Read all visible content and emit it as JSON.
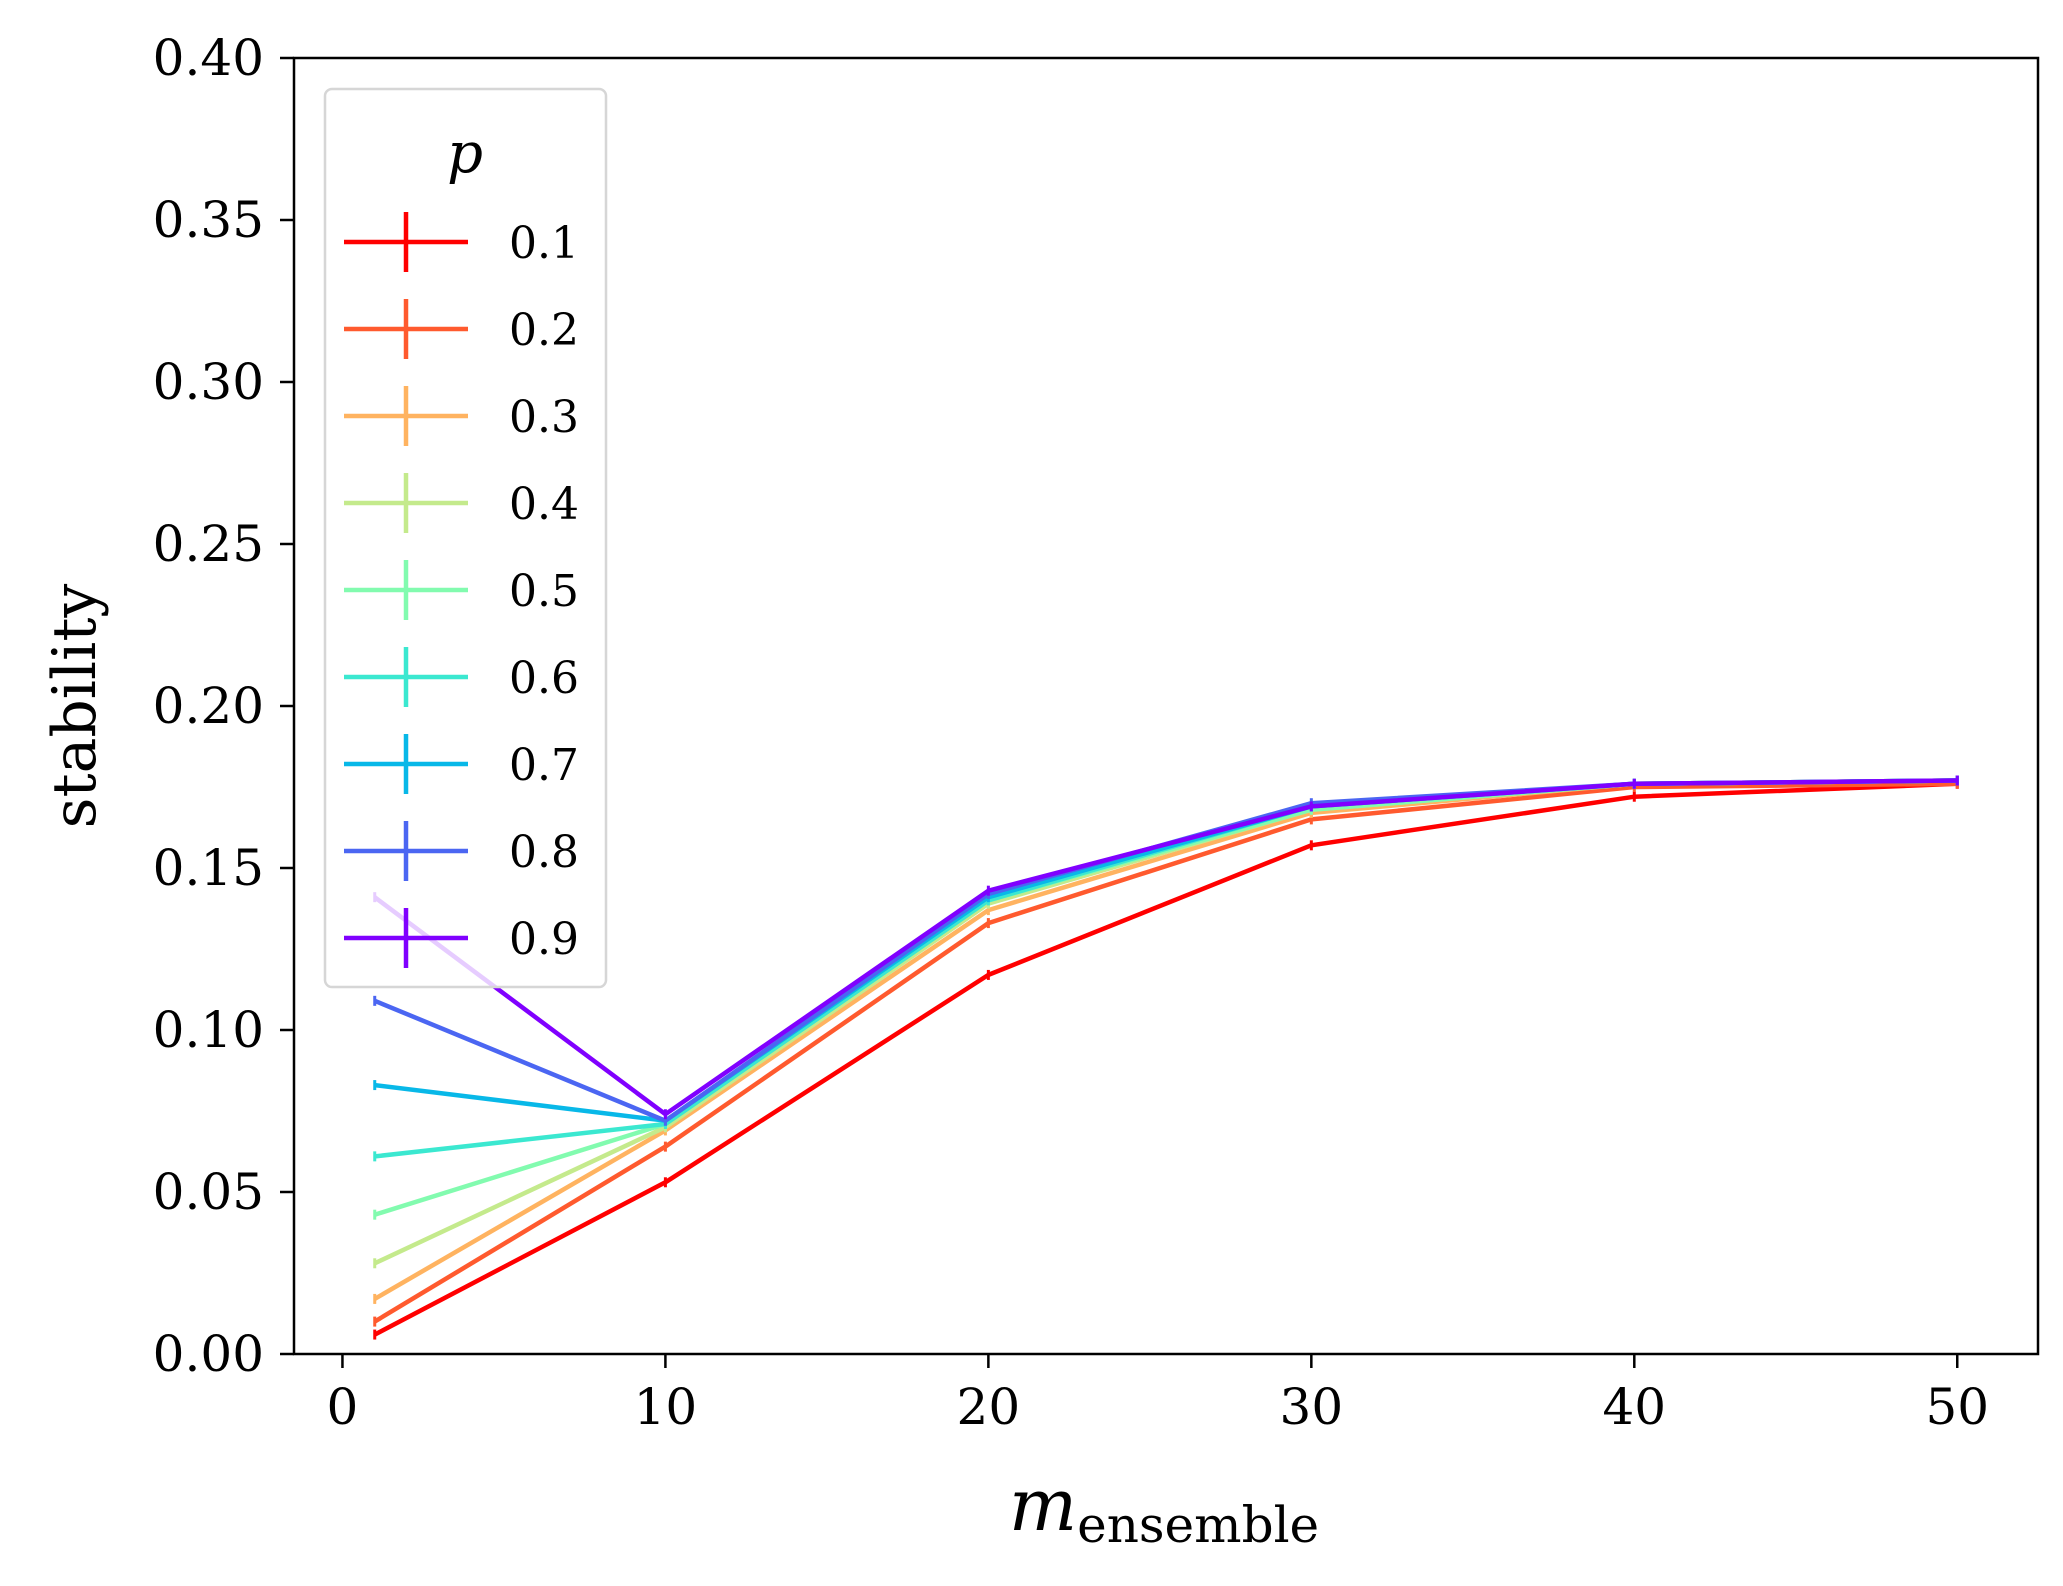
{
  "chart_data": {
    "type": "line",
    "title": "",
    "xlabel": {
      "main": "m",
      "subscript": "ensemble"
    },
    "ylabel": "stability",
    "xlim": [
      -1.5,
      52.5
    ],
    "ylim": [
      0.0,
      0.4
    ],
    "x_ticks": [
      0,
      10,
      20,
      30,
      40,
      50
    ],
    "x_tick_labels": [
      "0",
      "10",
      "20",
      "30",
      "40",
      "50"
    ],
    "y_ticks": [
      0.0,
      0.05,
      0.1,
      0.15,
      0.2,
      0.25,
      0.3,
      0.35,
      0.4
    ],
    "y_tick_labels": [
      "0.00",
      "0.05",
      "0.10",
      "0.15",
      "0.20",
      "0.25",
      "0.30",
      "0.35",
      "0.40"
    ],
    "grid": false,
    "legend": {
      "title": "p",
      "placement": "upper-left"
    },
    "x": [
      1,
      10,
      20,
      30,
      40,
      50
    ],
    "series": [
      {
        "name": "0.1",
        "color": "#ff0000",
        "values": [
          0.006,
          0.053,
          0.117,
          0.157,
          0.172,
          0.176
        ]
      },
      {
        "name": "0.2",
        "color": "#ff5a2e",
        "values": [
          0.01,
          0.064,
          0.133,
          0.165,
          0.175,
          0.176
        ]
      },
      {
        "name": "0.3",
        "color": "#ffb360",
        "values": [
          0.017,
          0.069,
          0.137,
          0.167,
          0.176,
          0.177
        ]
      },
      {
        "name": "0.4",
        "color": "#c4ea8c",
        "values": [
          0.028,
          0.07,
          0.139,
          0.168,
          0.176,
          0.177
        ]
      },
      {
        "name": "0.5",
        "color": "#82fbaf",
        "values": [
          0.043,
          0.071,
          0.14,
          0.168,
          0.176,
          0.177
        ]
      },
      {
        "name": "0.6",
        "color": "#3be8d0",
        "values": [
          0.061,
          0.071,
          0.14,
          0.169,
          0.176,
          0.177
        ]
      },
      {
        "name": "0.7",
        "color": "#08b8e8",
        "values": [
          0.083,
          0.072,
          0.141,
          0.169,
          0.176,
          0.177
        ]
      },
      {
        "name": "0.8",
        "color": "#4b66f2",
        "values": [
          0.109,
          0.072,
          0.142,
          0.17,
          0.176,
          0.177
        ]
      },
      {
        "name": "0.9",
        "color": "#8000ff",
        "values": [
          0.141,
          0.074,
          0.143,
          0.169,
          0.176,
          0.177
        ]
      }
    ]
  }
}
